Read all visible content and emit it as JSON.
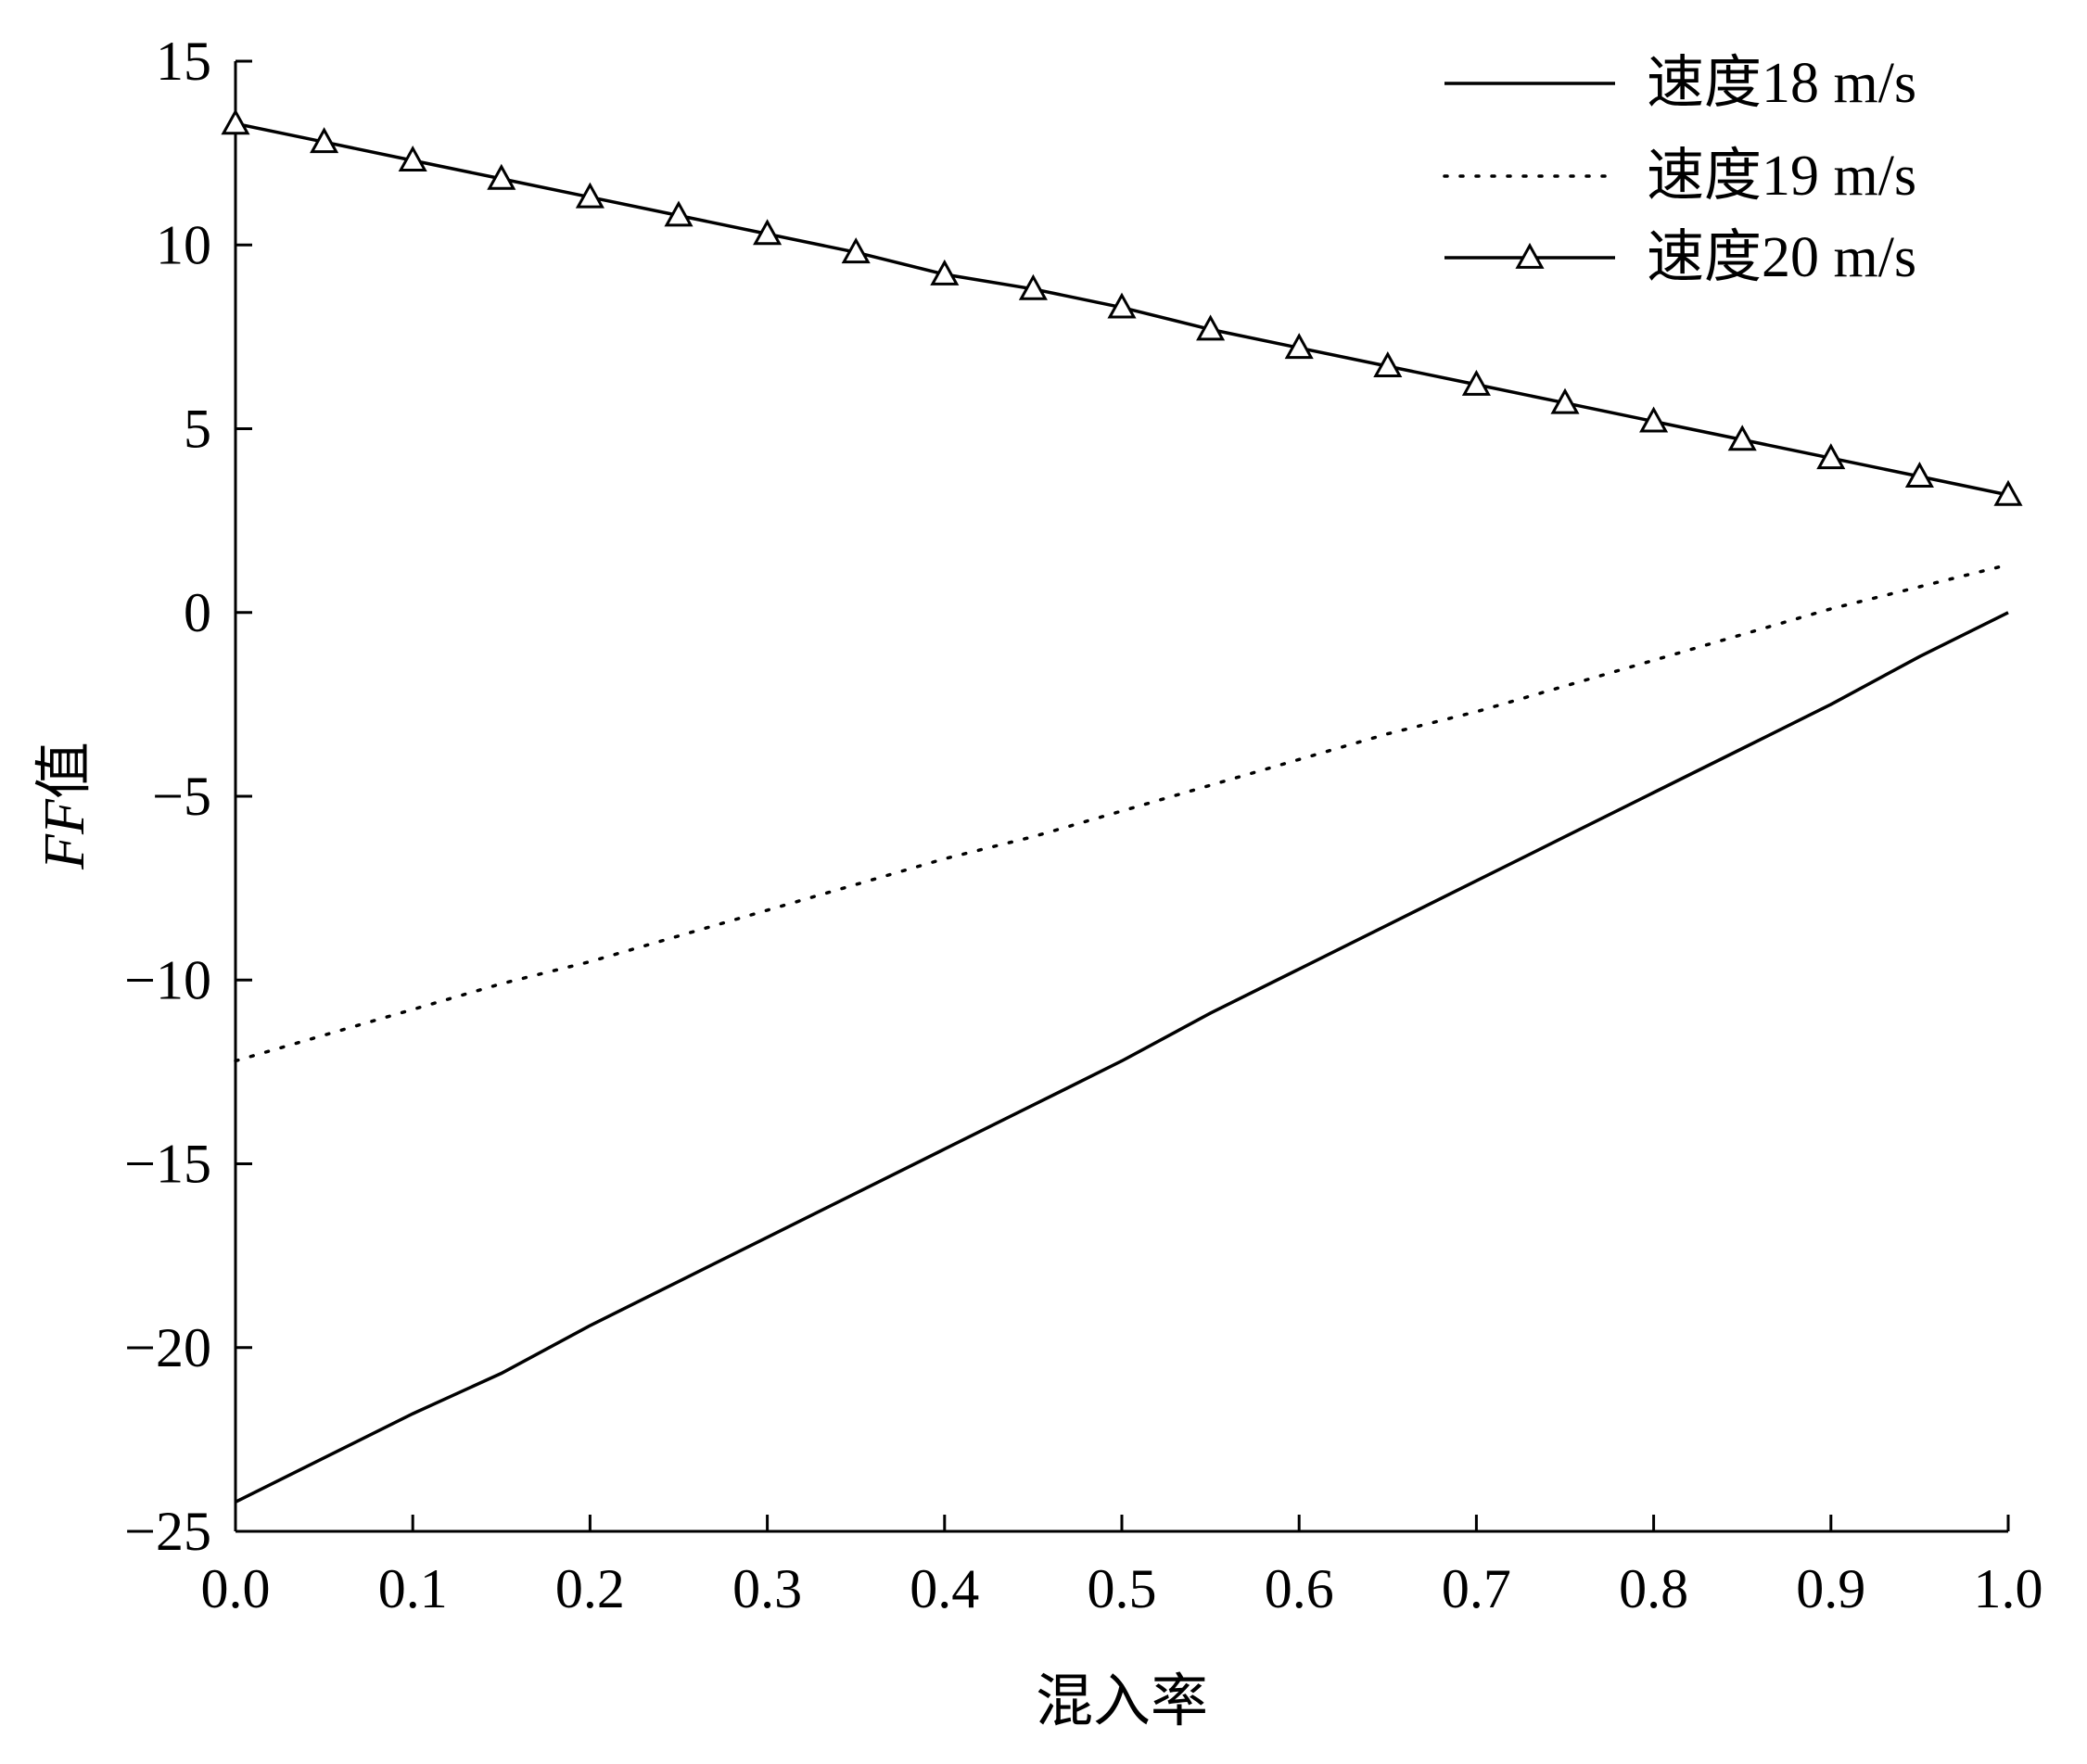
{
  "chart_data": {
    "type": "line",
    "title": "",
    "xlabel": "混入率",
    "ylabel_italic": "FF",
    "ylabel_suffix": "值",
    "xlim": [
      0.0,
      1.0
    ],
    "ylim": [
      -25,
      15
    ],
    "xticks": [
      0.0,
      0.1,
      0.2,
      0.3,
      0.4,
      0.5,
      0.6,
      0.7,
      0.8,
      0.9,
      1.0
    ],
    "xtick_labels": [
      "0.0",
      "0.1",
      "0.2",
      "0.3",
      "0.4",
      "0.5",
      "0.6",
      "0.7",
      "0.8",
      "0.9",
      "1.0"
    ],
    "yticks": [
      15,
      10,
      5,
      0,
      -5,
      -10,
      -15,
      -20,
      -25
    ],
    "ytick_labels": [
      "15",
      "10",
      "5",
      "0",
      "−10",
      "−15",
      "−20",
      "−25"
    ],
    "ytick_labels_full": [
      "15",
      "10",
      "5",
      "0",
      "−5",
      "−10",
      "−15",
      "−20",
      "−25"
    ],
    "grid": false,
    "legend_position": "top-right",
    "x": [
      0.0,
      0.05,
      0.1,
      0.15,
      0.2,
      0.25,
      0.3,
      0.35,
      0.4,
      0.45,
      0.5,
      0.55,
      0.6,
      0.65,
      0.7,
      0.75,
      0.8,
      0.85,
      0.9,
      0.95,
      1.0
    ],
    "series": [
      {
        "name": "速度18 m/s",
        "style": "solid",
        "marker": "none",
        "color": "#000000",
        "values": [
          -24.2,
          -23.0,
          -21.8,
          -20.7,
          -19.4,
          -18.2,
          -17.0,
          -15.8,
          -14.6,
          -13.4,
          -12.2,
          -10.9,
          -9.7,
          -8.5,
          -7.3,
          -6.1,
          -4.9,
          -3.7,
          -2.5,
          -1.2,
          0.0
        ]
      },
      {
        "name": "速度19 m/s",
        "style": "dotted",
        "marker": "none",
        "color": "#000000",
        "values": [
          -12.2,
          -11.5,
          -10.8,
          -10.1,
          -9.5,
          -8.8,
          -8.1,
          -7.4,
          -6.7,
          -6.1,
          -5.4,
          -4.7,
          -4.0,
          -3.3,
          -2.7,
          -2.0,
          -1.3,
          -0.6,
          0.1,
          0.7,
          1.3
        ]
      },
      {
        "name": "速度20 m/s",
        "style": "solid",
        "marker": "triangle",
        "color": "#000000",
        "values": [
          13.3,
          12.8,
          12.3,
          11.8,
          11.3,
          10.8,
          10.3,
          9.8,
          9.2,
          8.8,
          8.3,
          7.7,
          7.2,
          6.7,
          6.2,
          5.7,
          5.2,
          4.7,
          4.2,
          3.7,
          3.2
        ]
      }
    ]
  }
}
